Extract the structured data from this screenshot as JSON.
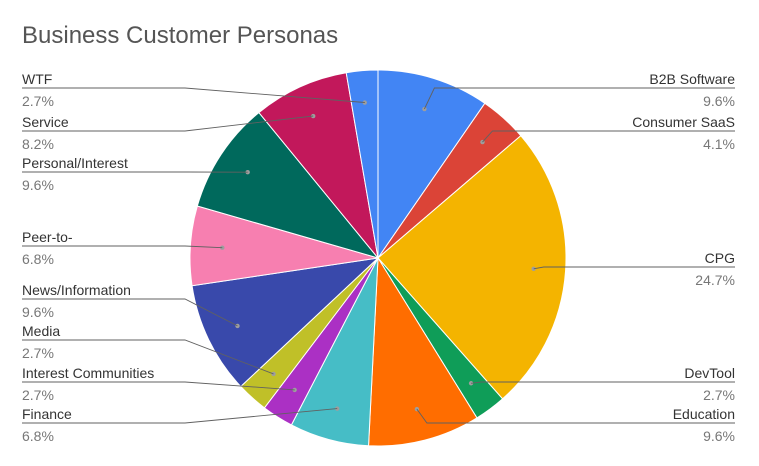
{
  "chart_data": {
    "type": "pie",
    "title": "Business Customer Personas",
    "slices": [
      {
        "label": "B2B Software",
        "value": 9.6,
        "value_label": "9.6%",
        "color": "#4285f4",
        "side": "right"
      },
      {
        "label": "Consumer SaaS",
        "value": 4.1,
        "value_label": "4.1%",
        "color": "#db4437",
        "side": "right"
      },
      {
        "label": "CPG",
        "value": 24.7,
        "value_label": "24.7%",
        "color": "#f4b400",
        "side": "right"
      },
      {
        "label": "DevTool",
        "value": 2.7,
        "value_label": "2.7%",
        "color": "#0f9d58",
        "side": "right"
      },
      {
        "label": "Education",
        "value": 9.6,
        "value_label": "9.6%",
        "color": "#ff6d00",
        "side": "right"
      },
      {
        "label": "Finance",
        "value": 6.8,
        "value_label": "6.8%",
        "color": "#46bdc6",
        "side": "left"
      },
      {
        "label": "Interest Communities",
        "value": 2.7,
        "value_label": "2.7%",
        "color": "#ab30c4",
        "side": "left"
      },
      {
        "label": "Media",
        "value": 2.7,
        "value_label": "2.7%",
        "color": "#c0c028",
        "side": "left"
      },
      {
        "label": "News/Information",
        "value": 9.6,
        "value_label": "9.6%",
        "color": "#3949ab",
        "side": "left"
      },
      {
        "label": "Peer-to-",
        "value": 6.8,
        "value_label": "6.8%",
        "color": "#f77fb0",
        "side": "left"
      },
      {
        "label": "Personal/Interest",
        "value": 9.6,
        "value_label": "9.6%",
        "color": "#00695c",
        "side": "left"
      },
      {
        "label": "Service",
        "value": 8.2,
        "value_label": "8.2%",
        "color": "#c2185b",
        "side": "left"
      },
      {
        "label": "WTF",
        "value": 2.7,
        "value_label": "2.7%",
        "color": "#4285f4",
        "side": "left"
      }
    ],
    "legend": "none"
  }
}
